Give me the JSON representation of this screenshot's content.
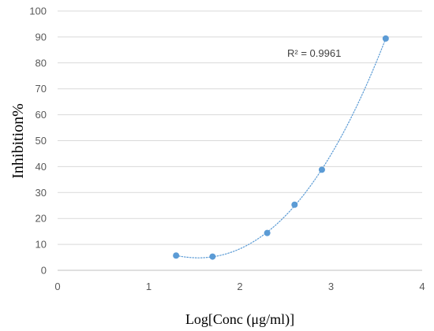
{
  "chart_data": {
    "type": "scatter",
    "title": "",
    "xlabel": "Log[Conc (μg/ml)]",
    "ylabel": "Inhibition%",
    "xlim": [
      0,
      4
    ],
    "ylim": [
      0,
      100
    ],
    "x_ticks": [
      "0",
      "1",
      "2",
      "3",
      "4"
    ],
    "y_ticks": [
      "0",
      "10",
      "20",
      "30",
      "40",
      "50",
      "60",
      "70",
      "80",
      "90",
      "100"
    ],
    "grid": "horizontal",
    "series": [
      {
        "x": [
          1.3,
          1.7,
          2.3,
          2.6,
          2.9,
          3.6
        ],
        "y": [
          5.7,
          5.3,
          14.4,
          25.3,
          38.8,
          89.4
        ]
      }
    ],
    "trendline": {
      "type": "polynomial",
      "style": "dotted",
      "annotation": "R² = 0.9961"
    },
    "colors": {
      "marker": "#5b9bd5",
      "trendline": "#5b9bd5",
      "grid": "#d9d9d9"
    }
  }
}
